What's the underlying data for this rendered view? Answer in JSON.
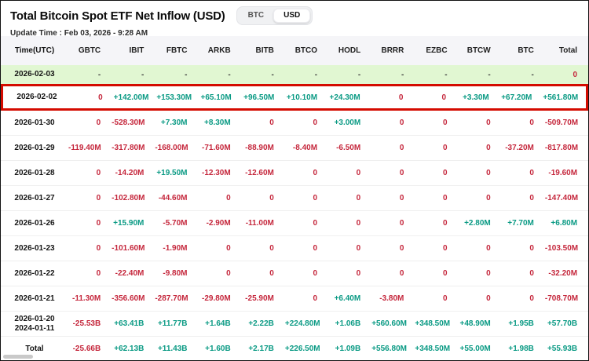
{
  "header": {
    "title": "Total Bitcoin Spot ETF Net Inflow (USD)",
    "update_time": "Update Time : Feb 03, 2026 - 9:28 AM",
    "toggle": {
      "options": [
        "BTC",
        "USD"
      ],
      "selected": "USD"
    }
  },
  "colors": {
    "positive_text": "#0a9a84",
    "negative_text": "#c5273c",
    "highlight_border": "#d40b00",
    "latest_row_bg": "#e1f7d2",
    "header_bg": "#f5f5f8"
  },
  "table": {
    "columns": [
      "Time(UTC)",
      "GBTC",
      "IBIT",
      "FBTC",
      "ARKB",
      "BITB",
      "BTCO",
      "HODL",
      "BRRR",
      "EZBC",
      "BTCW",
      "BTC",
      "Total"
    ],
    "rows": [
      {
        "date": [
          "2026-02-03"
        ],
        "style": "latest",
        "values": [
          "-",
          "-",
          "-",
          "-",
          "-",
          "-",
          "-",
          "-",
          "-",
          "-",
          "-",
          "0"
        ]
      },
      {
        "date": [
          "2026-02-02"
        ],
        "style": "highlighted",
        "values": [
          "0",
          "+142.00M",
          "+153.30M",
          "+65.10M",
          "+96.50M",
          "+10.10M",
          "+24.30M",
          "0",
          "0",
          "+3.30M",
          "+67.20M",
          "+561.80M"
        ]
      },
      {
        "date": [
          "2026-01-30"
        ],
        "style": "normal",
        "values": [
          "0",
          "-528.30M",
          "+7.30M",
          "+8.30M",
          "0",
          "0",
          "+3.00M",
          "0",
          "0",
          "0",
          "0",
          "-509.70M"
        ]
      },
      {
        "date": [
          "2026-01-29"
        ],
        "style": "normal",
        "values": [
          "-119.40M",
          "-317.80M",
          "-168.00M",
          "-71.60M",
          "-88.90M",
          "-8.40M",
          "-6.50M",
          "0",
          "0",
          "0",
          "-37.20M",
          "-817.80M"
        ]
      },
      {
        "date": [
          "2026-01-28"
        ],
        "style": "normal",
        "values": [
          "0",
          "-14.20M",
          "+19.50M",
          "-12.30M",
          "-12.60M",
          "0",
          "0",
          "0",
          "0",
          "0",
          "0",
          "-19.60M"
        ]
      },
      {
        "date": [
          "2026-01-27"
        ],
        "style": "normal",
        "values": [
          "0",
          "-102.80M",
          "-44.60M",
          "0",
          "0",
          "0",
          "0",
          "0",
          "0",
          "0",
          "0",
          "-147.40M"
        ]
      },
      {
        "date": [
          "2026-01-26"
        ],
        "style": "normal",
        "values": [
          "0",
          "+15.90M",
          "-5.70M",
          "-2.90M",
          "-11.00M",
          "0",
          "0",
          "0",
          "0",
          "+2.80M",
          "+7.70M",
          "+6.80M"
        ]
      },
      {
        "date": [
          "2026-01-23"
        ],
        "style": "normal",
        "values": [
          "0",
          "-101.60M",
          "-1.90M",
          "0",
          "0",
          "0",
          "0",
          "0",
          "0",
          "0",
          "0",
          "-103.50M"
        ]
      },
      {
        "date": [
          "2026-01-22"
        ],
        "style": "normal",
        "values": [
          "0",
          "-22.40M",
          "-9.80M",
          "0",
          "0",
          "0",
          "0",
          "0",
          "0",
          "0",
          "0",
          "-32.20M"
        ]
      },
      {
        "date": [
          "2026-01-21"
        ],
        "style": "normal",
        "values": [
          "-11.30M",
          "-356.60M",
          "-287.70M",
          "-29.80M",
          "-25.90M",
          "0",
          "+6.40M",
          "-3.80M",
          "0",
          "0",
          "0",
          "-708.70M"
        ]
      },
      {
        "date": [
          "2026-01-20",
          "2024-01-11"
        ],
        "style": "normal",
        "values": [
          "-25.53B",
          "+63.41B",
          "+11.77B",
          "+1.64B",
          "+2.22B",
          "+224.80M",
          "+1.06B",
          "+560.60M",
          "+348.50M",
          "+48.90M",
          "+1.95B",
          "+57.70B"
        ]
      },
      {
        "date": [
          "Total"
        ],
        "style": "total",
        "values": [
          "-25.66B",
          "+62.13B",
          "+11.43B",
          "+1.60B",
          "+2.17B",
          "+226.50M",
          "+1.09B",
          "+556.80M",
          "+348.50M",
          "+55.00M",
          "+1.98B",
          "+55.93B"
        ]
      }
    ]
  }
}
